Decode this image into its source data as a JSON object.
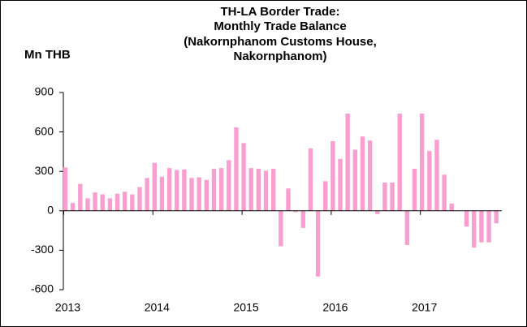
{
  "chart_data": {
    "type": "bar",
    "title": [
      "TH-LA Border Trade:",
      "Monthly Trade Balance",
      "(Nakornphanom Customs House,",
      "Nakornphanom)"
    ],
    "y_label": "Mn THB",
    "categories": [
      "2013",
      null,
      null,
      null,
      null,
      null,
      null,
      null,
      null,
      null,
      null,
      null,
      "2014",
      null,
      null,
      null,
      null,
      null,
      null,
      null,
      null,
      null,
      null,
      null,
      "2015",
      null,
      null,
      null,
      null,
      null,
      null,
      null,
      null,
      null,
      null,
      null,
      "2016",
      null,
      null,
      null,
      null,
      null,
      null,
      null,
      null,
      null,
      null,
      null,
      "2017",
      null,
      null,
      null,
      null,
      null,
      null,
      null,
      null,
      null,
      null
    ],
    "values": [
      330,
      60,
      205,
      95,
      140,
      125,
      95,
      130,
      145,
      125,
      180,
      250,
      365,
      260,
      325,
      310,
      315,
      250,
      255,
      235,
      320,
      325,
      385,
      635,
      515,
      325,
      320,
      305,
      320,
      -270,
      170,
      -10,
      -130,
      475,
      -500,
      225,
      530,
      395,
      740,
      465,
      565,
      535,
      -25,
      215,
      215,
      740,
      -260,
      320,
      740,
      455,
      540,
      275,
      55,
      0,
      -120,
      -280,
      -240,
      -240,
      -95
    ],
    "color": "#f99fcf",
    "ylim": [
      -600,
      900
    ],
    "yticks": [
      -600,
      -300,
      0,
      300,
      600,
      900
    ],
    "grid": false
  }
}
